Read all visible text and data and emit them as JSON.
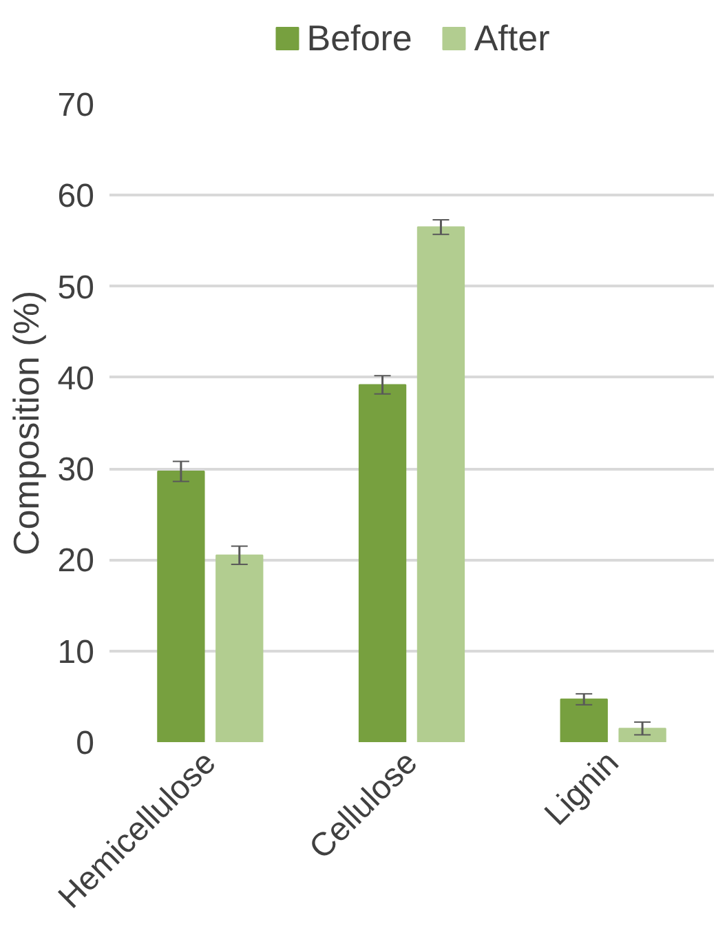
{
  "chart_data": {
    "type": "bar",
    "ylabel": "Composition (%)",
    "categories": [
      "Hemicellulose",
      "Cellulose",
      "Lignin"
    ],
    "series": [
      {
        "name": "Before",
        "color": "#77a03f",
        "values": [
          29.7,
          39.2,
          4.7
        ],
        "errors": [
          1.1,
          1.0,
          0.6
        ]
      },
      {
        "name": "After",
        "color": "#b2cd90",
        "values": [
          20.5,
          56.5,
          1.5
        ],
        "errors": [
          1.0,
          0.8,
          0.7
        ]
      }
    ],
    "ylim": [
      0,
      70
    ],
    "yticks": [
      0,
      10,
      20,
      30,
      40,
      50,
      60,
      70
    ],
    "grid": "y",
    "legend": "top"
  }
}
